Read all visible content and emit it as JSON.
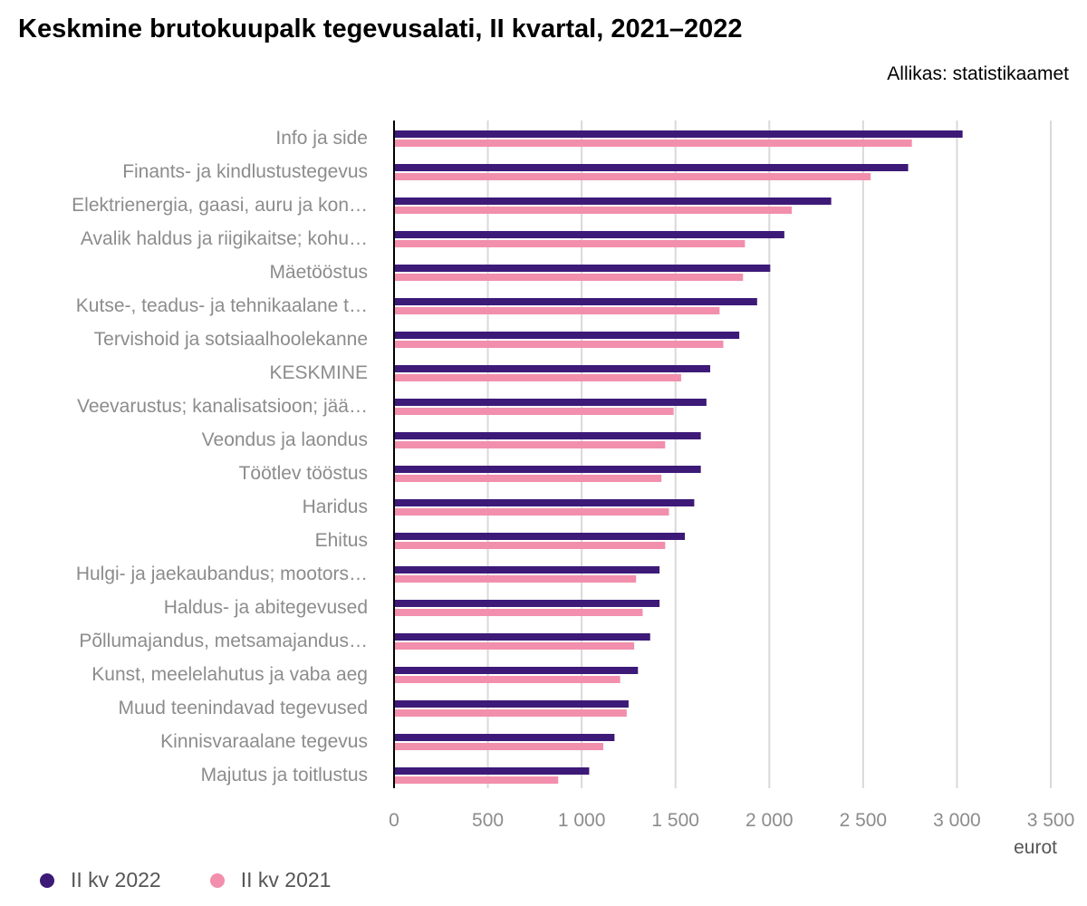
{
  "title": "Keskmine brutokuupalk tegevusalati, II kvartal, 2021–2022",
  "source": "Allikas: statistikaamet",
  "colors": {
    "series_2022": "#3d1a78",
    "series_2021": "#f28fac",
    "grid": "#d9d9d9",
    "axis": "#000000"
  },
  "chart_data": {
    "type": "bar",
    "orientation": "horizontal",
    "categories": [
      "Info ja side",
      "Finants- ja kindlustustegevus",
      "Elektrienergia, gaasi, auru ja kon…",
      "Avalik haldus ja riigikaitse; kohu…",
      "Mäetööstus",
      "Kutse-, teadus- ja tehnikaalane t…",
      "Tervishoid ja sotsiaalhoolekanne",
      "KESKMINE",
      "Veevarustus; kanalisatsioon; jää…",
      "Veondus ja laondus",
      "Töötlev tööstus",
      "Haridus",
      "Ehitus",
      "Hulgi- ja jaekaubandus; mootors…",
      "Haldus- ja abitegevused",
      "Põllumajandus, metsamajandus…",
      "Kunst, meelelahutus ja vaba aeg",
      "Muud teenindavad tegevused",
      "Kinnisvaraalane tegevus",
      "Majutus ja toitlustus"
    ],
    "series": [
      {
        "name": "II kv 2022",
        "values": [
          3030,
          2740,
          2330,
          2080,
          2005,
          1935,
          1840,
          1685,
          1665,
          1635,
          1635,
          1600,
          1550,
          1415,
          1415,
          1365,
          1300,
          1250,
          1175,
          1040
        ]
      },
      {
        "name": "II kv 2021",
        "values": [
          2760,
          2540,
          2120,
          1870,
          1860,
          1735,
          1755,
          1530,
          1490,
          1445,
          1425,
          1465,
          1445,
          1290,
          1325,
          1280,
          1205,
          1240,
          1115,
          875
        ]
      }
    ],
    "xlim": [
      0,
      3500
    ],
    "xticks": [
      0,
      500,
      1000,
      1500,
      2000,
      2500,
      3000,
      3500
    ],
    "xtick_labels": [
      "0",
      "500",
      "1 000",
      "1 500",
      "2 000",
      "2 500",
      "3 000",
      "3 500"
    ],
    "xlabel": "eurot",
    "grid": true,
    "legend_position": "bottom-left"
  }
}
